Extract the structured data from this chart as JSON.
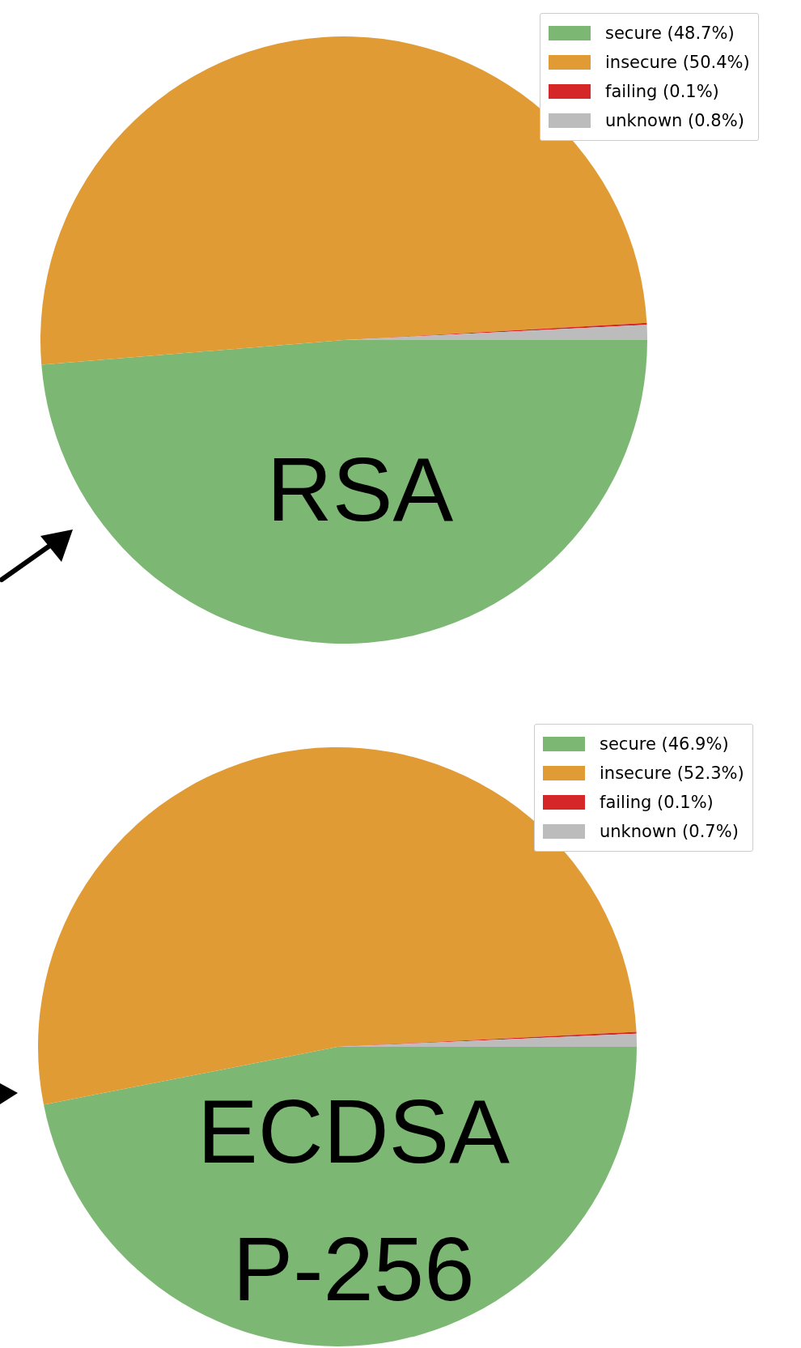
{
  "chart_data": [
    {
      "type": "pie",
      "title": "RSA",
      "categories": [
        "secure (48.7%)",
        "insecure (50.4%)",
        "failing (0.1%)",
        "unknown (0.8%)"
      ],
      "values": [
        48.7,
        50.4,
        0.1,
        0.8
      ],
      "colors": [
        "#7cb874",
        "#e09b35",
        "#d62728",
        "#bcbcbc"
      ],
      "legend": "top right"
    },
    {
      "type": "pie",
      "title": "ECDSA P-256",
      "categories": [
        "secure (46.9%)",
        "insecure (52.3%)",
        "failing (0.1%)",
        "unknown (0.7%)"
      ],
      "values": [
        46.9,
        52.3,
        0.1,
        0.7
      ],
      "colors": [
        "#7cb874",
        "#e09b35",
        "#d62728",
        "#bcbcbc"
      ],
      "legend": "top right"
    }
  ]
}
